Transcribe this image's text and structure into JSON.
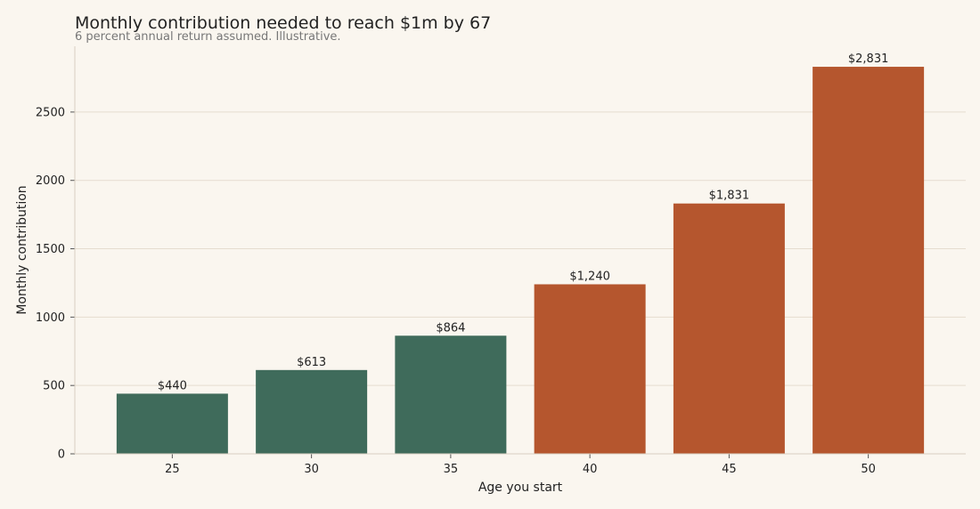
{
  "chart_data": {
    "type": "bar",
    "title": "Monthly contribution needed to reach $1m by 67",
    "subtitle": "6 percent annual return assumed. Illustrative.",
    "xlabel": "Age you start",
    "ylabel": "Monthly contribution",
    "categories": [
      "25",
      "30",
      "35",
      "40",
      "45",
      "50"
    ],
    "values": [
      440,
      613,
      864,
      1240,
      1831,
      2831
    ],
    "value_labels": [
      "$440",
      "$613",
      "$864",
      "$1,240",
      "$1,831",
      "$2,831"
    ],
    "ylim": [
      0,
      2981
    ],
    "yticks": [
      0,
      500,
      1000,
      1500,
      2000,
      2500
    ],
    "grid": "horizontal",
    "legend": "none",
    "colors": {
      "early": "#3f6b5b",
      "late": "#b5562e"
    },
    "bar_color_groups": [
      "early",
      "early",
      "early",
      "late",
      "late",
      "late"
    ]
  }
}
